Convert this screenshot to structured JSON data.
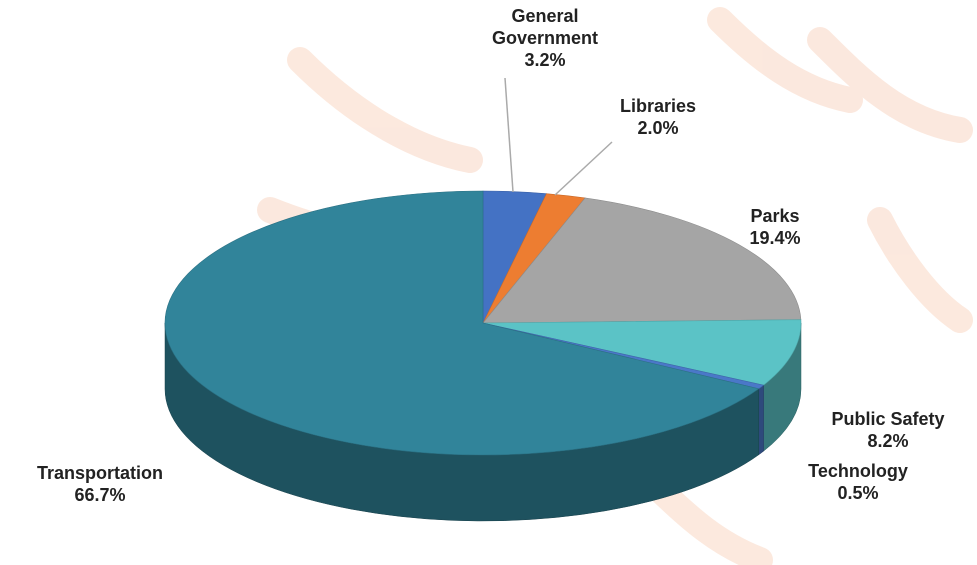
{
  "chart_data": {
    "type": "pie",
    "categories": [
      "General Government",
      "Libraries",
      "Parks",
      "Public Safety",
      "Technology",
      "Transportation"
    ],
    "values": [
      3.2,
      2.0,
      19.4,
      8.2,
      0.5,
      66.7
    ],
    "value_labels": [
      "3.2%",
      "2.0%",
      "19.4%",
      "8.2%",
      "0.5%",
      "66.7%"
    ],
    "colors": [
      "#4472c4",
      "#ed7d31",
      "#a5a5a5",
      "#5bc3c6",
      "#4a78c8",
      "#31849a"
    ]
  }
}
